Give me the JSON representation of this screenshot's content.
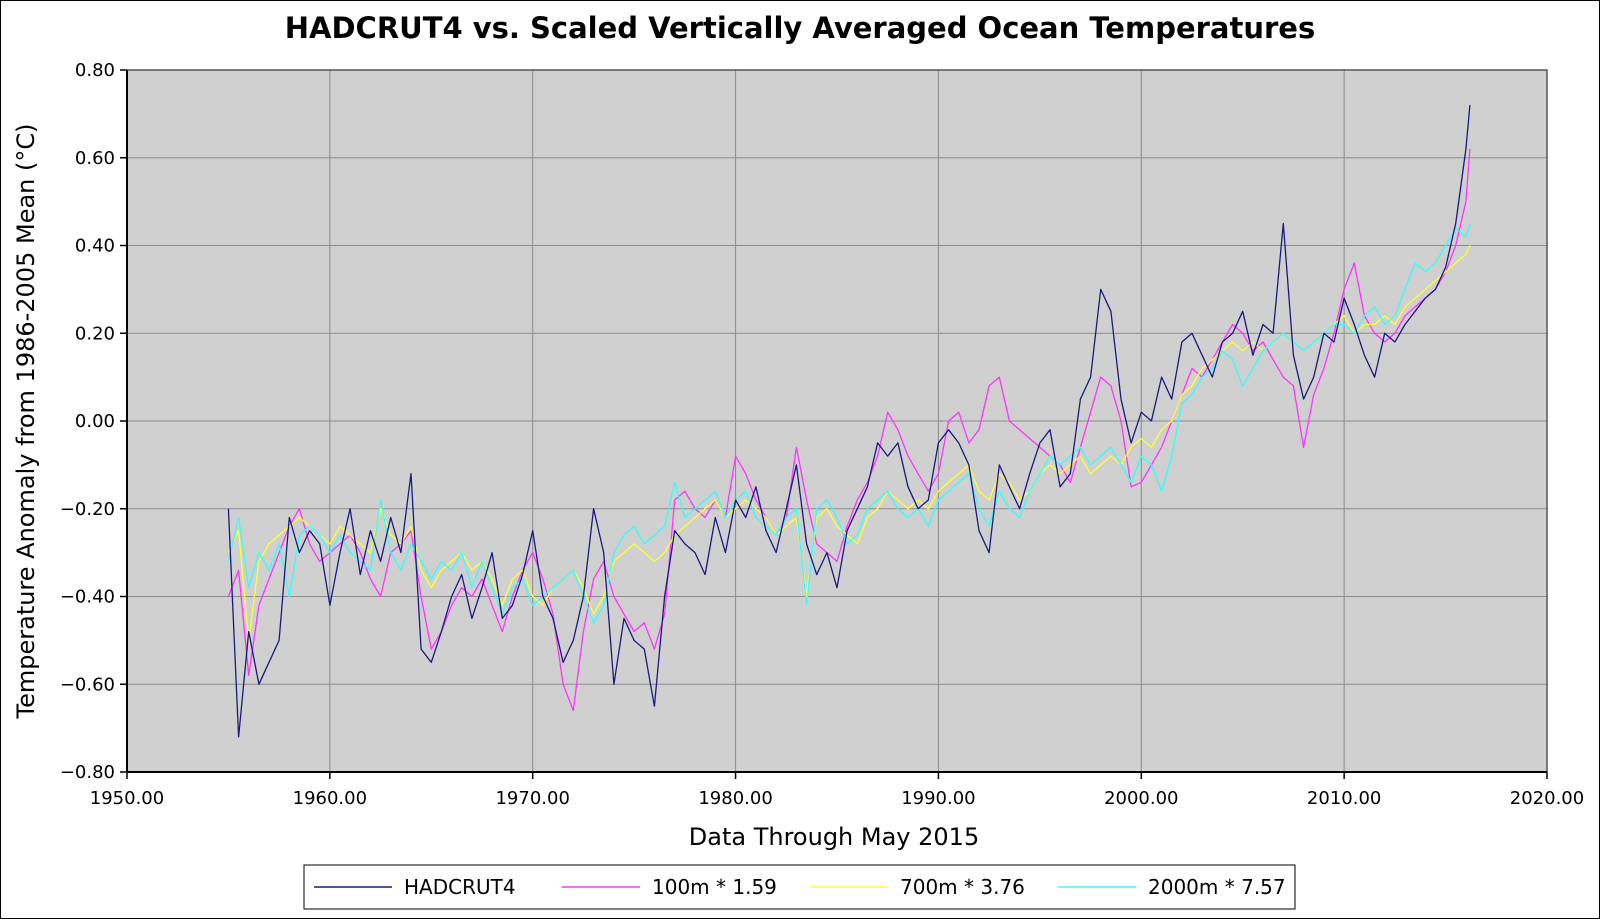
{
  "chart_data": {
    "type": "line",
    "title": "HADCRUT4 vs. Scaled Vertically Averaged Ocean Temperatures",
    "xlabel": "Data Through May 2015",
    "ylabel": "Temperature Anomaly from 1986-2005 Mean (°C)",
    "xlim": [
      1950,
      2020
    ],
    "ylim": [
      -0.8,
      0.8
    ],
    "x_ticks": [
      1950,
      1960,
      1970,
      1980,
      1990,
      2000,
      2010,
      2020
    ],
    "x_tick_labels": [
      "1950.00",
      "1960.00",
      "1970.00",
      "1980.00",
      "1990.00",
      "2000.00",
      "2010.00",
      "2020.00"
    ],
    "y_ticks": [
      0.8,
      0.6,
      0.4,
      0.2,
      0.0,
      -0.2,
      -0.4,
      -0.6,
      -0.8
    ],
    "y_tick_labels": [
      "0.80",
      "0.60",
      "0.40",
      "0.20",
      "0.00",
      "−0.20",
      "−0.40",
      "−0.60",
      "−0.80"
    ],
    "grid": true,
    "legend_position": "bottom",
    "series": [
      {
        "name": "HADCRUT4",
        "color": "#1a1a80",
        "x": [
          1955.0,
          1955.5,
          1956.0,
          1956.5,
          1957.0,
          1957.5,
          1958.0,
          1958.5,
          1959.0,
          1959.5,
          1960.0,
          1960.5,
          1961.0,
          1961.5,
          1962.0,
          1962.5,
          1963.0,
          1963.5,
          1964.0,
          1964.5,
          1965.0,
          1965.5,
          1966.0,
          1966.5,
          1967.0,
          1967.5,
          1968.0,
          1968.5,
          1969.0,
          1969.5,
          1970.0,
          1970.5,
          1971.0,
          1971.5,
          1972.0,
          1972.5,
          1973.0,
          1973.5,
          1974.0,
          1974.5,
          1975.0,
          1975.5,
          1976.0,
          1976.5,
          1977.0,
          1977.5,
          1978.0,
          1978.5,
          1979.0,
          1979.5,
          1980.0,
          1980.5,
          1981.0,
          1981.5,
          1982.0,
          1982.5,
          1983.0,
          1983.5,
          1984.0,
          1984.5,
          1985.0,
          1985.5,
          1986.0,
          1986.5,
          1987.0,
          1987.5,
          1988.0,
          1988.5,
          1989.0,
          1989.5,
          1990.0,
          1990.5,
          1991.0,
          1991.5,
          1992.0,
          1992.5,
          1993.0,
          1993.5,
          1994.0,
          1994.5,
          1995.0,
          1995.5,
          1996.0,
          1996.5,
          1997.0,
          1997.5,
          1998.0,
          1998.5,
          1999.0,
          1999.5,
          2000.0,
          2000.5,
          2001.0,
          2001.5,
          2002.0,
          2002.5,
          2003.0,
          2003.5,
          2004.0,
          2004.5,
          2005.0,
          2005.5,
          2006.0,
          2006.5,
          2007.0,
          2007.5,
          2008.0,
          2008.5,
          2009.0,
          2009.5,
          2010.0,
          2010.5,
          2011.0,
          2011.5,
          2012.0,
          2012.5,
          2013.0,
          2013.5,
          2014.0,
          2014.5,
          2015.0,
          2015.5,
          2016.0,
          2016.2
        ],
        "values": [
          -0.2,
          -0.72,
          -0.48,
          -0.6,
          -0.55,
          -0.5,
          -0.22,
          -0.3,
          -0.25,
          -0.28,
          -0.42,
          -0.3,
          -0.2,
          -0.35,
          -0.25,
          -0.32,
          -0.22,
          -0.3,
          -0.12,
          -0.52,
          -0.55,
          -0.48,
          -0.4,
          -0.35,
          -0.45,
          -0.38,
          -0.3,
          -0.45,
          -0.42,
          -0.35,
          -0.25,
          -0.4,
          -0.45,
          -0.55,
          -0.5,
          -0.4,
          -0.2,
          -0.3,
          -0.6,
          -0.45,
          -0.5,
          -0.52,
          -0.65,
          -0.4,
          -0.25,
          -0.28,
          -0.3,
          -0.35,
          -0.22,
          -0.3,
          -0.18,
          -0.22,
          -0.15,
          -0.25,
          -0.3,
          -0.2,
          -0.1,
          -0.28,
          -0.35,
          -0.3,
          -0.38,
          -0.25,
          -0.2,
          -0.15,
          -0.05,
          -0.08,
          -0.05,
          -0.15,
          -0.2,
          -0.18,
          -0.05,
          -0.02,
          -0.05,
          -0.1,
          -0.25,
          -0.3,
          -0.1,
          -0.15,
          -0.2,
          -0.12,
          -0.05,
          -0.02,
          -0.15,
          -0.12,
          0.05,
          0.1,
          0.3,
          0.25,
          0.05,
          -0.05,
          0.02,
          0.0,
          0.1,
          0.05,
          0.18,
          0.2,
          0.15,
          0.1,
          0.18,
          0.2,
          0.25,
          0.15,
          0.22,
          0.2,
          0.45,
          0.15,
          0.05,
          0.1,
          0.2,
          0.18,
          0.28,
          0.22,
          0.15,
          0.1,
          0.2,
          0.18,
          0.22,
          0.25,
          0.28,
          0.3,
          0.35,
          0.45,
          0.62,
          0.72
        ]
      },
      {
        "name": "100m * 1.59",
        "color": "#ff33ff",
        "x": [
          1955.0,
          1955.5,
          1956.0,
          1956.5,
          1957.0,
          1957.5,
          1958.0,
          1958.5,
          1959.0,
          1959.5,
          1960.0,
          1960.5,
          1961.0,
          1961.5,
          1962.0,
          1962.5,
          1963.0,
          1963.5,
          1964.0,
          1964.5,
          1965.0,
          1965.5,
          1966.0,
          1966.5,
          1967.0,
          1967.5,
          1968.0,
          1968.5,
          1969.0,
          1969.5,
          1970.0,
          1970.5,
          1971.0,
          1971.5,
          1972.0,
          1972.5,
          1973.0,
          1973.5,
          1974.0,
          1974.5,
          1975.0,
          1975.5,
          1976.0,
          1976.5,
          1977.0,
          1977.5,
          1978.0,
          1978.5,
          1979.0,
          1979.5,
          1980.0,
          1980.5,
          1981.0,
          1981.5,
          1982.0,
          1982.5,
          1983.0,
          1983.5,
          1984.0,
          1984.5,
          1985.0,
          1985.5,
          1986.0,
          1986.5,
          1987.0,
          1987.5,
          1988.0,
          1988.5,
          1989.0,
          1989.5,
          1990.0,
          1990.5,
          1991.0,
          1991.5,
          1992.0,
          1992.5,
          1993.0,
          1993.5,
          1994.0,
          1994.5,
          1995.0,
          1995.5,
          1996.0,
          1996.5,
          1997.0,
          1997.5,
          1998.0,
          1998.5,
          1999.0,
          1999.5,
          2000.0,
          2000.5,
          2001.0,
          2001.5,
          2002.0,
          2002.5,
          2003.0,
          2003.5,
          2004.0,
          2004.5,
          2005.0,
          2005.5,
          2006.0,
          2006.5,
          2007.0,
          2007.5,
          2008.0,
          2008.5,
          2009.0,
          2009.5,
          2010.0,
          2010.5,
          2011.0,
          2011.5,
          2012.0,
          2012.5,
          2013.0,
          2013.5,
          2014.0,
          2014.5,
          2015.0,
          2015.5,
          2016.0,
          2016.2
        ],
        "values": [
          -0.4,
          -0.34,
          -0.58,
          -0.42,
          -0.36,
          -0.3,
          -0.24,
          -0.2,
          -0.28,
          -0.32,
          -0.3,
          -0.28,
          -0.26,
          -0.3,
          -0.36,
          -0.4,
          -0.3,
          -0.28,
          -0.25,
          -0.4,
          -0.52,
          -0.48,
          -0.42,
          -0.38,
          -0.4,
          -0.36,
          -0.42,
          -0.48,
          -0.4,
          -0.34,
          -0.3,
          -0.36,
          -0.44,
          -0.6,
          -0.66,
          -0.48,
          -0.36,
          -0.32,
          -0.4,
          -0.44,
          -0.48,
          -0.46,
          -0.52,
          -0.44,
          -0.18,
          -0.16,
          -0.2,
          -0.22,
          -0.18,
          -0.22,
          -0.08,
          -0.12,
          -0.18,
          -0.22,
          -0.26,
          -0.22,
          -0.06,
          -0.18,
          -0.28,
          -0.3,
          -0.32,
          -0.24,
          -0.18,
          -0.14,
          -0.08,
          0.02,
          -0.02,
          -0.08,
          -0.12,
          -0.16,
          -0.12,
          0.0,
          0.02,
          -0.05,
          -0.02,
          0.08,
          0.1,
          0.0,
          -0.02,
          -0.04,
          -0.06,
          -0.08,
          -0.1,
          -0.14,
          -0.06,
          0.02,
          0.1,
          0.08,
          0.0,
          -0.15,
          -0.14,
          -0.1,
          -0.06,
          0.0,
          0.06,
          0.12,
          0.1,
          0.14,
          0.18,
          0.22,
          0.2,
          0.16,
          0.18,
          0.14,
          0.1,
          0.08,
          -0.06,
          0.06,
          0.12,
          0.2,
          0.3,
          0.36,
          0.24,
          0.2,
          0.18,
          0.2,
          0.24,
          0.26,
          0.28,
          0.3,
          0.34,
          0.4,
          0.5,
          0.62
        ]
      },
      {
        "name": "700m * 3.76",
        "color": "#ffff33",
        "x": [
          1955.0,
          1955.5,
          1956.0,
          1956.5,
          1957.0,
          1957.5,
          1958.0,
          1958.5,
          1959.0,
          1959.5,
          1960.0,
          1960.5,
          1961.0,
          1961.5,
          1962.0,
          1962.5,
          1963.0,
          1963.5,
          1964.0,
          1964.5,
          1965.0,
          1965.5,
          1966.0,
          1966.5,
          1967.0,
          1967.5,
          1968.0,
          1968.5,
          1969.0,
          1969.5,
          1970.0,
          1970.5,
          1971.0,
          1971.5,
          1972.0,
          1972.5,
          1973.0,
          1973.5,
          1974.0,
          1974.5,
          1975.0,
          1975.5,
          1976.0,
          1976.5,
          1977.0,
          1977.5,
          1978.0,
          1978.5,
          1979.0,
          1979.5,
          1980.0,
          1980.5,
          1981.0,
          1981.5,
          1982.0,
          1982.5,
          1983.0,
          1983.5,
          1984.0,
          1984.5,
          1985.0,
          1985.5,
          1986.0,
          1986.5,
          1987.0,
          1987.5,
          1988.0,
          1988.5,
          1989.0,
          1989.5,
          1990.0,
          1990.5,
          1991.0,
          1991.5,
          1992.0,
          1992.5,
          1993.0,
          1993.5,
          1994.0,
          1994.5,
          1995.0,
          1995.5,
          1996.0,
          1996.5,
          1997.0,
          1997.5,
          1998.0,
          1998.5,
          1999.0,
          1999.5,
          2000.0,
          2000.5,
          2001.0,
          2001.5,
          2002.0,
          2002.5,
          2003.0,
          2003.5,
          2004.0,
          2004.5,
          2005.0,
          2005.5,
          2006.0,
          2006.5,
          2007.0,
          2007.5,
          2008.0,
          2008.5,
          2009.0,
          2009.5,
          2010.0,
          2010.5,
          2011.0,
          2011.5,
          2012.0,
          2012.5,
          2013.0,
          2013.5,
          2014.0,
          2014.5,
          2015.0,
          2015.5,
          2016.0,
          2016.2
        ],
        "values": [
          -0.3,
          -0.25,
          -0.5,
          -0.32,
          -0.28,
          -0.26,
          -0.24,
          -0.22,
          -0.24,
          -0.26,
          -0.28,
          -0.24,
          -0.26,
          -0.28,
          -0.3,
          -0.2,
          -0.26,
          -0.28,
          -0.24,
          -0.34,
          -0.38,
          -0.34,
          -0.32,
          -0.3,
          -0.34,
          -0.32,
          -0.36,
          -0.42,
          -0.36,
          -0.34,
          -0.4,
          -0.42,
          -0.38,
          -0.36,
          -0.34,
          -0.38,
          -0.44,
          -0.4,
          -0.32,
          -0.3,
          -0.28,
          -0.3,
          -0.32,
          -0.3,
          -0.26,
          -0.24,
          -0.22,
          -0.2,
          -0.18,
          -0.22,
          -0.2,
          -0.18,
          -0.2,
          -0.22,
          -0.26,
          -0.24,
          -0.22,
          -0.4,
          -0.22,
          -0.2,
          -0.24,
          -0.26,
          -0.28,
          -0.22,
          -0.2,
          -0.16,
          -0.18,
          -0.2,
          -0.18,
          -0.2,
          -0.16,
          -0.14,
          -0.12,
          -0.1,
          -0.16,
          -0.18,
          -0.12,
          -0.14,
          -0.18,
          -0.16,
          -0.12,
          -0.1,
          -0.12,
          -0.1,
          -0.08,
          -0.12,
          -0.1,
          -0.08,
          -0.1,
          -0.06,
          -0.04,
          -0.06,
          -0.02,
          0.0,
          0.06,
          0.08,
          0.12,
          0.14,
          0.16,
          0.18,
          0.16,
          0.18,
          0.16,
          0.18,
          0.2,
          0.18,
          0.16,
          0.18,
          0.2,
          0.22,
          0.24,
          0.2,
          0.22,
          0.22,
          0.24,
          0.22,
          0.26,
          0.28,
          0.3,
          0.32,
          0.34,
          0.36,
          0.38,
          0.4
        ]
      },
      {
        "name": "2000m * 7.57",
        "color": "#33ffff",
        "x": [
          1955.0,
          1955.5,
          1956.0,
          1956.5,
          1957.0,
          1957.5,
          1958.0,
          1958.5,
          1959.0,
          1959.5,
          1960.0,
          1960.5,
          1961.0,
          1961.5,
          1962.0,
          1962.5,
          1963.0,
          1963.5,
          1964.0,
          1964.5,
          1965.0,
          1965.5,
          1966.0,
          1966.5,
          1967.0,
          1967.5,
          1968.0,
          1968.5,
          1969.0,
          1969.5,
          1970.0,
          1970.5,
          1971.0,
          1971.5,
          1972.0,
          1972.5,
          1973.0,
          1973.5,
          1974.0,
          1974.5,
          1975.0,
          1975.5,
          1976.0,
          1976.5,
          1977.0,
          1977.5,
          1978.0,
          1978.5,
          1979.0,
          1979.5,
          1980.0,
          1980.5,
          1981.0,
          1981.5,
          1982.0,
          1982.5,
          1983.0,
          1983.5,
          1984.0,
          1984.5,
          1985.0,
          1985.5,
          1986.0,
          1986.5,
          1987.0,
          1987.5,
          1988.0,
          1988.5,
          1989.0,
          1989.5,
          1990.0,
          1990.5,
          1991.0,
          1991.5,
          1992.0,
          1992.5,
          1993.0,
          1993.5,
          1994.0,
          1994.5,
          1995.0,
          1995.5,
          1996.0,
          1996.5,
          1997.0,
          1997.5,
          1998.0,
          1998.5,
          1999.0,
          1999.5,
          2000.0,
          2000.5,
          2001.0,
          2001.5,
          2002.0,
          2002.5,
          2003.0,
          2003.5,
          2004.0,
          2004.5,
          2005.0,
          2005.5,
          2006.0,
          2006.5,
          2007.0,
          2007.5,
          2008.0,
          2008.5,
          2009.0,
          2009.5,
          2010.0,
          2010.5,
          2011.0,
          2011.5,
          2012.0,
          2012.5,
          2013.0,
          2013.5,
          2014.0,
          2014.5,
          2015.0,
          2015.5,
          2016.0,
          2016.2
        ],
        "values": [
          -0.32,
          -0.22,
          -0.38,
          -0.3,
          -0.34,
          -0.28,
          -0.4,
          -0.26,
          -0.24,
          -0.26,
          -0.3,
          -0.26,
          -0.3,
          -0.32,
          -0.34,
          -0.18,
          -0.3,
          -0.34,
          -0.28,
          -0.32,
          -0.36,
          -0.32,
          -0.34,
          -0.3,
          -0.38,
          -0.32,
          -0.38,
          -0.44,
          -0.38,
          -0.36,
          -0.42,
          -0.4,
          -0.38,
          -0.36,
          -0.34,
          -0.4,
          -0.46,
          -0.42,
          -0.3,
          -0.26,
          -0.24,
          -0.28,
          -0.26,
          -0.24,
          -0.14,
          -0.22,
          -0.2,
          -0.18,
          -0.16,
          -0.22,
          -0.18,
          -0.16,
          -0.22,
          -0.24,
          -0.26,
          -0.22,
          -0.2,
          -0.42,
          -0.2,
          -0.18,
          -0.22,
          -0.28,
          -0.26,
          -0.2,
          -0.18,
          -0.16,
          -0.2,
          -0.22,
          -0.2,
          -0.24,
          -0.18,
          -0.16,
          -0.14,
          -0.12,
          -0.2,
          -0.24,
          -0.16,
          -0.2,
          -0.22,
          -0.16,
          -0.12,
          -0.08,
          -0.1,
          -0.08,
          -0.06,
          -0.1,
          -0.08,
          -0.06,
          -0.1,
          -0.14,
          -0.08,
          -0.1,
          -0.16,
          -0.08,
          0.04,
          0.06,
          0.1,
          0.12,
          0.16,
          0.14,
          0.08,
          0.12,
          0.16,
          0.18,
          0.2,
          0.18,
          0.16,
          0.18,
          0.2,
          0.22,
          0.22,
          0.2,
          0.24,
          0.26,
          0.22,
          0.24,
          0.3,
          0.36,
          0.34,
          0.36,
          0.4,
          0.44,
          0.42,
          0.45
        ]
      }
    ]
  }
}
